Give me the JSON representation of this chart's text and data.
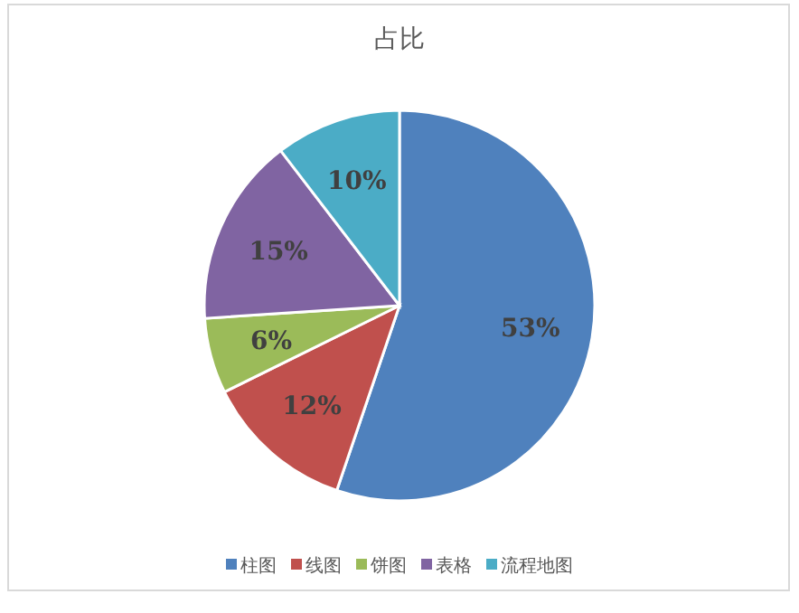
{
  "chart_data": {
    "type": "pie",
    "title": "占比",
    "categories": [
      "柱图",
      "线图",
      "饼图",
      "表格",
      "流程地图"
    ],
    "values": [
      53,
      12,
      6,
      15,
      10
    ],
    "value_labels": [
      "53%",
      "12%",
      "6%",
      "15%",
      "10%"
    ],
    "colors": [
      "#4f81bd",
      "#c0504d",
      "#9bbb59",
      "#8064a2",
      "#4bacc6"
    ],
    "legend": "bottom"
  }
}
